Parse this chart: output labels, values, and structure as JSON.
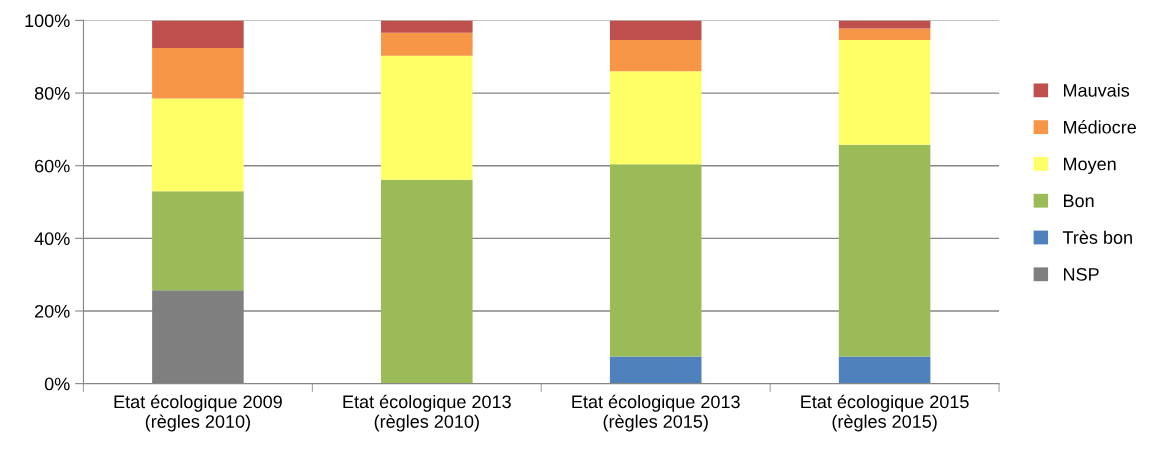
{
  "chart_data": {
    "type": "bar",
    "stacked": true,
    "categories": [
      "Etat écologique 2009\n(règles 2010)",
      "Etat écologique 2013\n(règles 2010)",
      "Etat écologique 2013\n(règles 2015)",
      "Etat écologique 2015\n(règles 2015)"
    ],
    "series": [
      {
        "name": "NSP",
        "color": "#7f7f7f",
        "values": [
          25.7,
          null,
          null,
          null
        ]
      },
      {
        "name": "Très bon",
        "color": "#4f81bd",
        "values": [
          null,
          null,
          7.5,
          7.5
        ]
      },
      {
        "name": "Bon",
        "color": "#9bbb59",
        "values": [
          27.3,
          56.1,
          52.9,
          58.3
        ]
      },
      {
        "name": "Moyen",
        "color": "#ffff66",
        "values": [
          25.5,
          34.2,
          25.6,
          28.8
        ]
      },
      {
        "name": "Médiocre",
        "color": "#f79646",
        "values": [
          13.9,
          6.3,
          8.6,
          3.2
        ]
      },
      {
        "name": "Mauvais",
        "color": "#c0504d",
        "values": [
          7.6,
          3.4,
          5.4,
          2.2
        ]
      }
    ],
    "ylim": [
      0,
      100
    ],
    "yticks": [
      {
        "value": 0,
        "label": "0%"
      },
      {
        "value": 20,
        "label": "20%"
      },
      {
        "value": 40,
        "label": "40%"
      },
      {
        "value": 60,
        "label": "60%"
      },
      {
        "value": 80,
        "label": "80%"
      },
      {
        "value": 100,
        "label": "100%"
      }
    ],
    "grid": "y",
    "legend": "right"
  }
}
